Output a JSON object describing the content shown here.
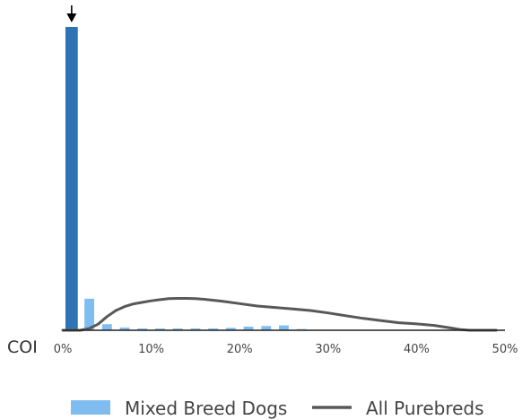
{
  "chart_data": {
    "type": "bar",
    "xlabel": "COI",
    "x_unit": "%",
    "xlim": [
      0,
      50
    ],
    "x_ticks": [
      {
        "value": 0,
        "label": "0%"
      },
      {
        "value": 10,
        "label": "10%"
      },
      {
        "value": 20,
        "label": "20%"
      },
      {
        "value": 30,
        "label": "30%"
      },
      {
        "value": 40,
        "label": "40%"
      },
      {
        "value": 50,
        "label": "50%"
      }
    ],
    "y_axis_shown": false,
    "grid": false,
    "legend_position": "bottom",
    "highlight": {
      "x": 1,
      "value": 1.0,
      "color": "#2e74b5",
      "marker": "down-arrow"
    },
    "series": [
      {
        "name": "Mixed Breed Dogs",
        "type": "bar",
        "color": "#7fbdf1",
        "bin_width": 2,
        "x": [
          3,
          5,
          7,
          9,
          11,
          13,
          15,
          17,
          19,
          21,
          23,
          25,
          27
        ],
        "values": [
          0.104,
          0.02,
          0.009,
          0.006,
          0.006,
          0.006,
          0.006,
          0.006,
          0.008,
          0.012,
          0.014,
          0.016,
          0.004
        ]
      },
      {
        "name": "All Purebreds",
        "type": "line",
        "color": "#585858",
        "x": [
          0,
          2,
          3,
          4,
          5,
          6,
          7,
          8,
          9,
          10,
          11,
          12,
          13,
          14,
          15,
          16,
          18,
          20,
          22,
          24,
          26,
          28,
          30,
          32,
          34,
          36,
          38,
          40,
          42,
          44,
          45,
          46,
          47,
          48,
          49
        ],
        "values": [
          0,
          0,
          0.006,
          0.02,
          0.045,
          0.065,
          0.078,
          0.087,
          0.092,
          0.097,
          0.101,
          0.104,
          0.105,
          0.105,
          0.104,
          0.102,
          0.096,
          0.088,
          0.08,
          0.075,
          0.07,
          0.065,
          0.057,
          0.048,
          0.039,
          0.032,
          0.025,
          0.021,
          0.016,
          0.007,
          0.002,
          0,
          0,
          0,
          0
        ]
      }
    ]
  }
}
